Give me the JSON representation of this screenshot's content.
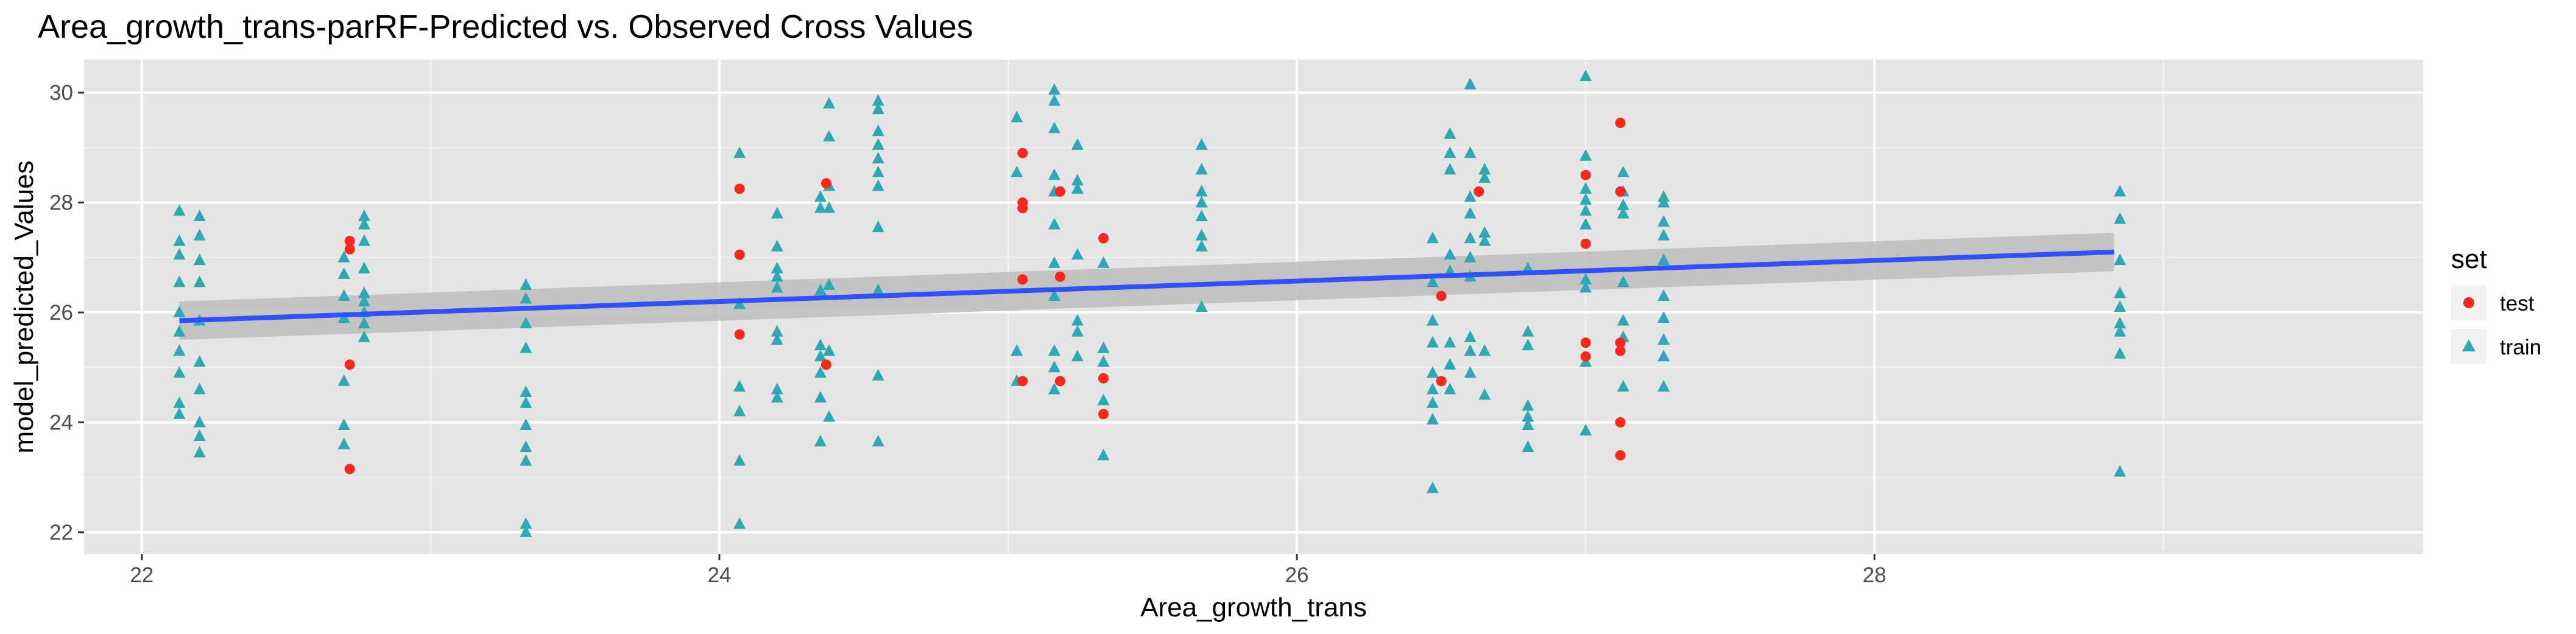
{
  "chart_data": {
    "type": "scatter",
    "title": "Area_growth_trans-parRF-Predicted vs. Observed Cross Values",
    "xlabel": "Area_growth_trans",
    "ylabel": "model_predicted_Values",
    "xlim": [
      21.8,
      29.9
    ],
    "ylim": [
      21.6,
      30.6
    ],
    "x_ticks": [
      22,
      24,
      26,
      28
    ],
    "y_ticks": [
      22,
      24,
      26,
      28,
      30
    ],
    "grid": true,
    "background": "#e5e5e5",
    "legend": {
      "title": "set",
      "position": "right",
      "entries": [
        {
          "label": "test",
          "color": "#f8291c",
          "shape": "circle"
        },
        {
          "label": "train",
          "color": "#2ea8b4",
          "shape": "triangle"
        }
      ]
    },
    "trend": {
      "method": "linear",
      "color": "#3050f8",
      "band_color": "#bdbdbd",
      "x": [
        22.13,
        28.83
      ],
      "y": [
        25.85,
        27.1
      ],
      "band_lower": [
        25.5,
        26.75
      ],
      "band_upper": [
        26.2,
        27.45
      ]
    },
    "series": [
      {
        "name": "test",
        "color": "#f8291c",
        "shape": "circle",
        "points": [
          [
            22.72,
            27.3
          ],
          [
            22.72,
            27.15
          ],
          [
            22.72,
            25.05
          ],
          [
            22.72,
            23.15
          ],
          [
            24.07,
            28.25
          ],
          [
            24.07,
            27.05
          ],
          [
            24.07,
            25.6
          ],
          [
            24.37,
            28.35
          ],
          [
            24.37,
            25.05
          ],
          [
            25.05,
            28.9
          ],
          [
            25.05,
            28.0
          ],
          [
            25.05,
            27.9
          ],
          [
            25.05,
            26.6
          ],
          [
            25.05,
            24.75
          ],
          [
            25.18,
            28.2
          ],
          [
            25.18,
            26.65
          ],
          [
            25.18,
            24.75
          ],
          [
            25.33,
            27.35
          ],
          [
            25.33,
            24.8
          ],
          [
            25.33,
            24.15
          ],
          [
            26.5,
            26.3
          ],
          [
            26.5,
            24.75
          ],
          [
            26.63,
            28.2
          ],
          [
            27.0,
            28.5
          ],
          [
            27.0,
            27.25
          ],
          [
            27.0,
            25.45
          ],
          [
            27.0,
            25.2
          ],
          [
            27.12,
            29.45
          ],
          [
            27.12,
            28.2
          ],
          [
            27.12,
            25.45
          ],
          [
            27.12,
            25.3
          ],
          [
            27.12,
            24.0
          ],
          [
            27.12,
            23.4
          ]
        ]
      },
      {
        "name": "train",
        "color": "#2ea8b4",
        "shape": "triangle",
        "points": [
          [
            22.13,
            27.85
          ],
          [
            22.13,
            27.3
          ],
          [
            22.13,
            27.05
          ],
          [
            22.13,
            26.55
          ],
          [
            22.13,
            26.0
          ],
          [
            22.13,
            25.65
          ],
          [
            22.13,
            25.3
          ],
          [
            22.13,
            24.9
          ],
          [
            22.13,
            24.35
          ],
          [
            22.13,
            24.15
          ],
          [
            22.2,
            27.75
          ],
          [
            22.2,
            27.4
          ],
          [
            22.2,
            26.95
          ],
          [
            22.2,
            26.55
          ],
          [
            22.2,
            25.85
          ],
          [
            22.2,
            25.1
          ],
          [
            22.2,
            24.6
          ],
          [
            22.2,
            24.0
          ],
          [
            22.2,
            23.75
          ],
          [
            22.2,
            23.45
          ],
          [
            22.7,
            27.0
          ],
          [
            22.7,
            26.7
          ],
          [
            22.7,
            26.3
          ],
          [
            22.7,
            25.9
          ],
          [
            22.7,
            24.75
          ],
          [
            22.7,
            23.95
          ],
          [
            22.7,
            23.6
          ],
          [
            22.77,
            27.75
          ],
          [
            22.77,
            27.6
          ],
          [
            22.77,
            27.3
          ],
          [
            22.77,
            26.8
          ],
          [
            22.77,
            26.35
          ],
          [
            22.77,
            26.2
          ],
          [
            22.77,
            26.0
          ],
          [
            22.77,
            25.8
          ],
          [
            22.77,
            25.55
          ],
          [
            23.33,
            26.5
          ],
          [
            23.33,
            26.25
          ],
          [
            23.33,
            25.8
          ],
          [
            23.33,
            25.35
          ],
          [
            23.33,
            24.55
          ],
          [
            23.33,
            24.35
          ],
          [
            23.33,
            23.95
          ],
          [
            23.33,
            23.55
          ],
          [
            23.33,
            23.3
          ],
          [
            23.33,
            22.15
          ],
          [
            23.33,
            22.0
          ],
          [
            24.07,
            28.9
          ],
          [
            24.07,
            26.15
          ],
          [
            24.07,
            24.65
          ],
          [
            24.07,
            24.2
          ],
          [
            24.07,
            23.3
          ],
          [
            24.07,
            22.15
          ],
          [
            24.2,
            27.8
          ],
          [
            24.2,
            27.2
          ],
          [
            24.2,
            26.8
          ],
          [
            24.2,
            26.65
          ],
          [
            24.2,
            26.45
          ],
          [
            24.2,
            25.65
          ],
          [
            24.2,
            25.5
          ],
          [
            24.2,
            24.6
          ],
          [
            24.2,
            24.45
          ],
          [
            24.35,
            28.1
          ],
          [
            24.35,
            27.9
          ],
          [
            24.35,
            26.4
          ],
          [
            24.35,
            25.4
          ],
          [
            24.35,
            25.2
          ],
          [
            24.35,
            24.9
          ],
          [
            24.35,
            24.45
          ],
          [
            24.35,
            23.65
          ],
          [
            24.38,
            29.8
          ],
          [
            24.38,
            29.2
          ],
          [
            24.38,
            28.3
          ],
          [
            24.38,
            27.9
          ],
          [
            24.38,
            26.5
          ],
          [
            24.38,
            25.3
          ],
          [
            24.38,
            24.1
          ],
          [
            24.55,
            29.85
          ],
          [
            24.55,
            29.7
          ],
          [
            24.55,
            29.3
          ],
          [
            24.55,
            29.05
          ],
          [
            24.55,
            28.8
          ],
          [
            24.55,
            28.55
          ],
          [
            24.55,
            28.3
          ],
          [
            24.55,
            27.55
          ],
          [
            24.55,
            26.4
          ],
          [
            24.55,
            24.85
          ],
          [
            24.55,
            23.65
          ],
          [
            25.03,
            29.55
          ],
          [
            25.03,
            28.55
          ],
          [
            25.03,
            25.3
          ],
          [
            25.03,
            24.75
          ],
          [
            25.16,
            30.05
          ],
          [
            25.16,
            29.85
          ],
          [
            25.16,
            29.35
          ],
          [
            25.16,
            28.5
          ],
          [
            25.16,
            28.2
          ],
          [
            25.16,
            27.6
          ],
          [
            25.16,
            26.9
          ],
          [
            25.16,
            26.3
          ],
          [
            25.16,
            25.3
          ],
          [
            25.16,
            25.0
          ],
          [
            25.16,
            24.6
          ],
          [
            25.24,
            29.05
          ],
          [
            25.24,
            28.4
          ],
          [
            25.24,
            28.25
          ],
          [
            25.24,
            27.05
          ],
          [
            25.24,
            25.85
          ],
          [
            25.24,
            25.65
          ],
          [
            25.24,
            25.2
          ],
          [
            25.33,
            26.9
          ],
          [
            25.33,
            25.35
          ],
          [
            25.33,
            25.1
          ],
          [
            25.33,
            24.4
          ],
          [
            25.33,
            23.4
          ],
          [
            25.67,
            29.05
          ],
          [
            25.67,
            28.6
          ],
          [
            25.67,
            28.2
          ],
          [
            25.67,
            28.0
          ],
          [
            25.67,
            27.75
          ],
          [
            25.67,
            27.4
          ],
          [
            25.67,
            27.2
          ],
          [
            25.67,
            26.1
          ],
          [
            26.47,
            27.35
          ],
          [
            26.47,
            26.55
          ],
          [
            26.47,
            25.85
          ],
          [
            26.47,
            25.45
          ],
          [
            26.47,
            24.9
          ],
          [
            26.47,
            24.6
          ],
          [
            26.47,
            24.35
          ],
          [
            26.47,
            24.05
          ],
          [
            26.47,
            22.8
          ],
          [
            26.53,
            29.25
          ],
          [
            26.53,
            28.9
          ],
          [
            26.53,
            28.6
          ],
          [
            26.53,
            27.05
          ],
          [
            26.53,
            26.75
          ],
          [
            26.53,
            25.45
          ],
          [
            26.53,
            25.05
          ],
          [
            26.53,
            24.6
          ],
          [
            26.6,
            30.15
          ],
          [
            26.6,
            28.9
          ],
          [
            26.6,
            28.1
          ],
          [
            26.6,
            27.8
          ],
          [
            26.6,
            27.35
          ],
          [
            26.6,
            27.0
          ],
          [
            26.6,
            26.65
          ],
          [
            26.6,
            25.55
          ],
          [
            26.6,
            25.3
          ],
          [
            26.6,
            24.9
          ],
          [
            26.65,
            28.6
          ],
          [
            26.65,
            28.45
          ],
          [
            26.65,
            27.45
          ],
          [
            26.65,
            27.3
          ],
          [
            26.65,
            25.3
          ],
          [
            26.65,
            24.5
          ],
          [
            26.8,
            26.8
          ],
          [
            26.8,
            25.65
          ],
          [
            26.8,
            25.4
          ],
          [
            26.8,
            24.3
          ],
          [
            26.8,
            24.1
          ],
          [
            26.8,
            23.95
          ],
          [
            26.8,
            23.55
          ],
          [
            27.0,
            30.3
          ],
          [
            27.0,
            28.85
          ],
          [
            27.0,
            28.25
          ],
          [
            27.0,
            28.05
          ],
          [
            27.0,
            27.85
          ],
          [
            27.0,
            27.6
          ],
          [
            27.0,
            26.6
          ],
          [
            27.0,
            26.45
          ],
          [
            27.0,
            25.1
          ],
          [
            27.0,
            23.85
          ],
          [
            27.13,
            28.55
          ],
          [
            27.13,
            28.2
          ],
          [
            27.13,
            27.95
          ],
          [
            27.13,
            27.8
          ],
          [
            27.13,
            26.55
          ],
          [
            27.13,
            25.85
          ],
          [
            27.13,
            25.55
          ],
          [
            27.13,
            24.65
          ],
          [
            27.27,
            28.1
          ],
          [
            27.27,
            28.0
          ],
          [
            27.27,
            27.65
          ],
          [
            27.27,
            27.4
          ],
          [
            27.27,
            26.95
          ],
          [
            27.27,
            26.3
          ],
          [
            27.27,
            25.9
          ],
          [
            27.27,
            25.5
          ],
          [
            27.27,
            25.2
          ],
          [
            27.27,
            24.65
          ],
          [
            28.85,
            28.2
          ],
          [
            28.85,
            27.7
          ],
          [
            28.85,
            26.95
          ],
          [
            28.85,
            26.35
          ],
          [
            28.85,
            26.1
          ],
          [
            28.85,
            25.8
          ],
          [
            28.85,
            25.65
          ],
          [
            28.85,
            25.25
          ],
          [
            28.85,
            23.1
          ]
        ]
      }
    ]
  }
}
